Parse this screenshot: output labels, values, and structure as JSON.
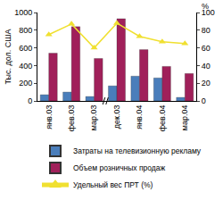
{
  "chart_data": {
    "type": "bar",
    "y_label": "Тыс. дол. США",
    "y2_label": "%",
    "categories": [
      "янв.03",
      "фев.03",
      "мар.03",
      "дек.03",
      "янв.04",
      "фев.04",
      "мар.04"
    ],
    "series": [
      {
        "name": "Затраты на телевизионную рекламу",
        "type": "bar",
        "color": "#4a7ebb",
        "values": [
          70,
          100,
          50,
          170,
          280,
          260,
          40
        ]
      },
      {
        "name": "Объем розничных продаж",
        "type": "bar",
        "color": "#a0205a",
        "values": [
          540,
          840,
          480,
          930,
          580,
          390,
          310
        ]
      },
      {
        "name": "Удельный вес ПРТ (%)",
        "type": "line",
        "axis": "y2",
        "color": "#f0e030",
        "marker": "triangle",
        "values": [
          75,
          87,
          60,
          88,
          73,
          67,
          65
        ]
      }
    ],
    "ylim": [
      0,
      1000
    ],
    "yticks": [
      0,
      200,
      400,
      600,
      800,
      1000
    ],
    "y2lim": [
      0,
      100
    ],
    "y2ticks": [
      0,
      20,
      40,
      60,
      80,
      100
    ],
    "legend": "bottom",
    "grid": false
  }
}
